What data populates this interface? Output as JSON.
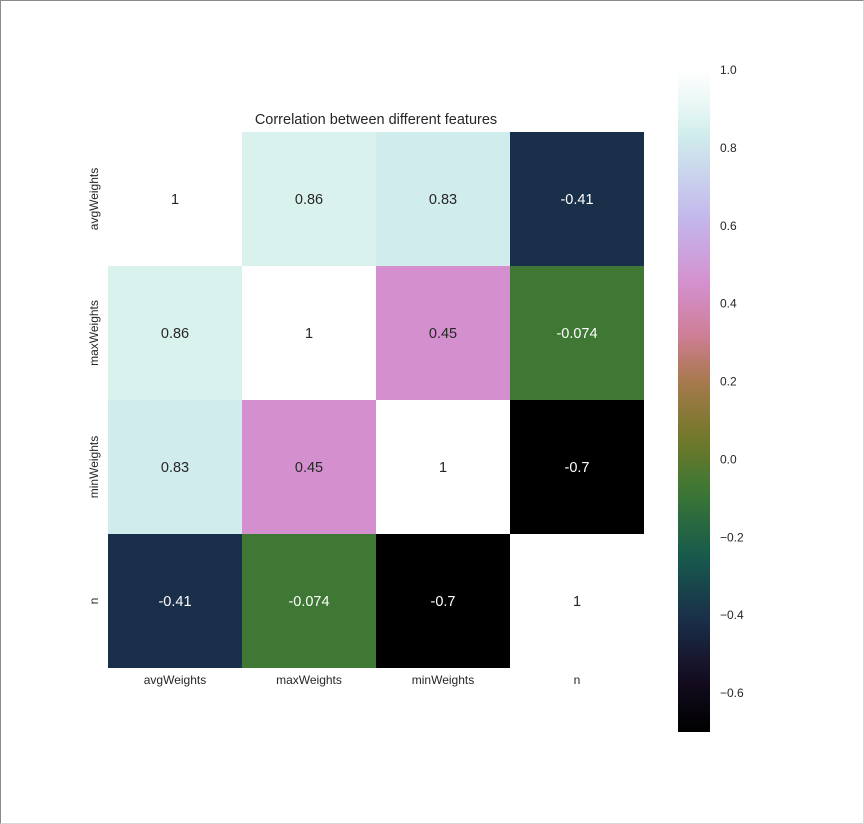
{
  "chart_data": {
    "type": "heatmap",
    "title": "Correlation between different features",
    "x_labels": [
      "avgWeights",
      "maxWeights",
      "minWeights",
      "n"
    ],
    "y_labels": [
      "avgWeights",
      "maxWeights",
      "minWeights",
      "n"
    ],
    "values": [
      [
        1,
        0.86,
        0.83,
        -0.41
      ],
      [
        0.86,
        1,
        0.45,
        -0.074
      ],
      [
        0.83,
        0.45,
        1,
        -0.7
      ],
      [
        -0.41,
        -0.074,
        -0.7,
        1
      ]
    ],
    "cell_labels": [
      [
        "1",
        "0.86",
        "0.83",
        "-0.41"
      ],
      [
        "0.86",
        "1",
        "0.45",
        "-0.074"
      ],
      [
        "0.83",
        "0.45",
        "1",
        "-0.7"
      ],
      [
        "-0.41",
        "-0.074",
        "-0.7",
        "1"
      ]
    ],
    "colorbar": {
      "vmin": -0.7,
      "vmax": 1.0,
      "ticks": [
        1.0,
        0.8,
        0.6,
        0.4,
        0.2,
        0.0,
        -0.2,
        -0.4,
        -0.6
      ],
      "tick_labels": [
        "1.0",
        "0.8",
        "0.6",
        "0.4",
        "0.2",
        "0.0",
        "−0.2",
        "−0.4",
        "−0.6"
      ],
      "colormap": "cubehelix",
      "placement": "right"
    }
  }
}
